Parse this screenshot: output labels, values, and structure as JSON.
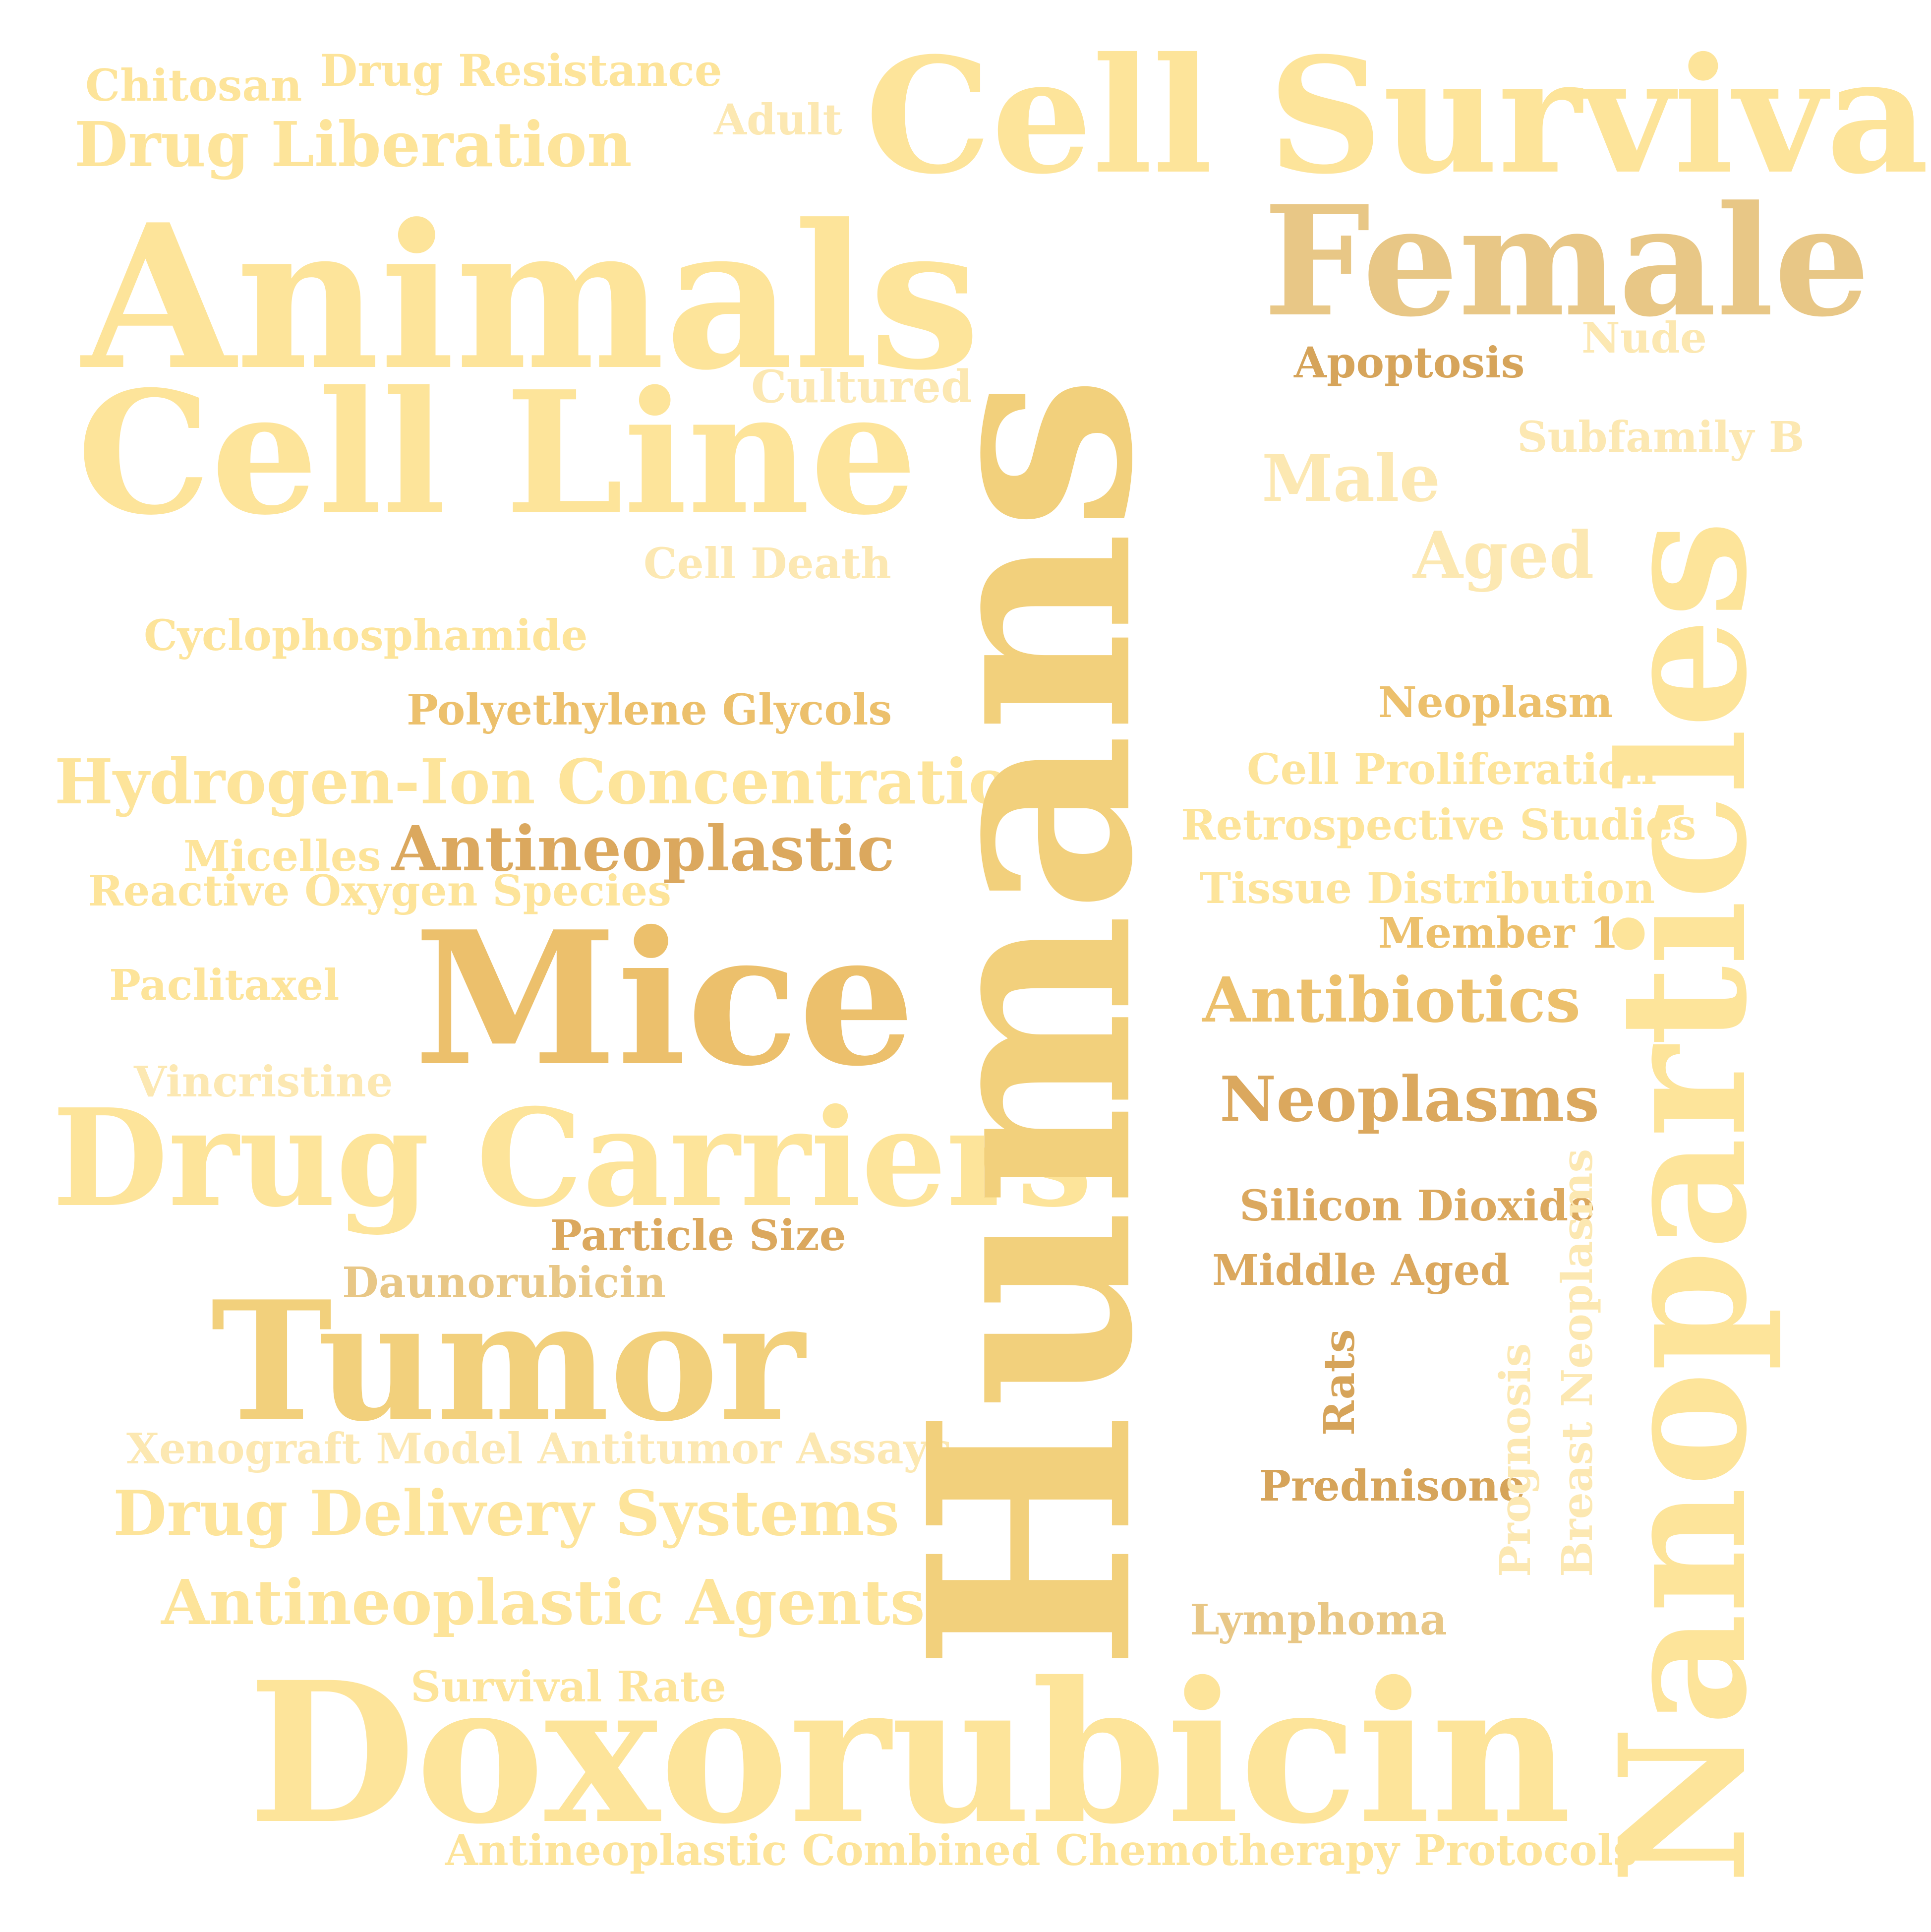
{
  "colors": {
    "background": "#ffffff",
    "light": "#fde49a",
    "pale": "#fce8b2",
    "mid": "#f2d07c",
    "warm": "#ecc06c",
    "tan": "#e8c786",
    "dark": "#dba85e",
    "brown": "#d6a45a"
  },
  "words": {
    "chitosan": "Chitosan",
    "drug_resistance": "Drug Resistance",
    "drug_liberation": "Drug Liberation",
    "adult": "Adult",
    "cell_survival": "Cell Survival",
    "animals": "Animals",
    "female": "Female",
    "nude": "Nude",
    "apoptosis": "Apoptosis",
    "cultured": "Cultured",
    "cell_line": "Cell Line",
    "subfamily_b": "Subfamily B",
    "male": "Male",
    "aged": "Aged",
    "cell_death": "Cell Death",
    "cyclophosphamide": "Cyclophosphamide",
    "neoplasm": "Neoplasm",
    "polyethylene_glycols": "Polyethylene Glycols",
    "cell_proliferation": "Cell Proliferation",
    "hydrogen_ion_concentration": "Hydrogen-Ion Concentration",
    "retrospective_studies": "Retrospective Studies",
    "micelles": "Micelles",
    "antineoplastic": "Antineoplastic",
    "reactive_oxygen_species": "Reactive Oxygen Species",
    "tissue_distribution": "Tissue Distribution",
    "member_1": "Member 1",
    "paclitaxel": "Paclitaxel",
    "mice": "Mice",
    "antibiotics": "Antibiotics",
    "vincristine": "Vincristine",
    "neoplasms": "Neoplasms",
    "drug_carriers": "Drug Carriers",
    "silicon_dioxide": "Silicon Dioxide",
    "particle_size": "Particle Size",
    "daunorubicin": "Daunorubicin",
    "middle_aged": "Middle Aged",
    "tumor": "Tumor",
    "xenograft": "Xenograft Model Antitumor Assays",
    "prednisone": "Prednisone",
    "drug_delivery_systems": "Drug Delivery Systems",
    "antineoplastic_agents": "Antineoplastic Agents",
    "lymphoma": "Lymphoma",
    "survival_rate": "Survival Rate",
    "doxorubicin": "Doxorubicin",
    "combined_protocols": "Antineoplastic Combined Chemotherapy Protocols",
    "humans": "Humans",
    "nanoparticles": "Nanoparticles",
    "breast_neoplasms": "Breast Neoplasms",
    "prognosis": "Prognosis",
    "rats": "Rats"
  }
}
